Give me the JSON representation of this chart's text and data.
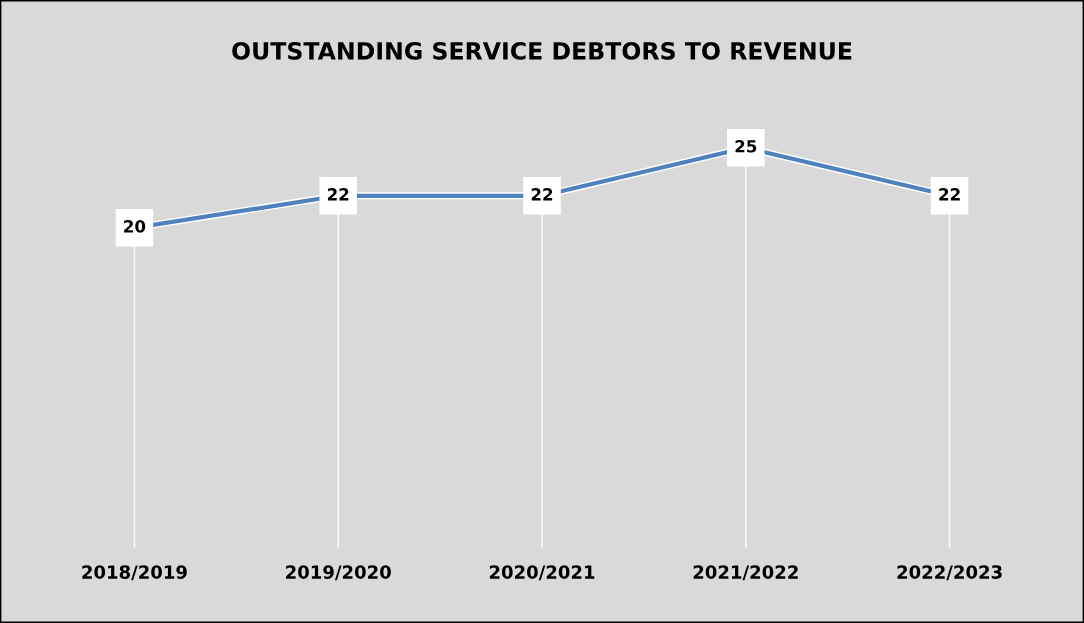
{
  "chart_data": {
    "type": "line",
    "title": "OUTSTANDING SERVICE DEBTORS TO REVENUE",
    "categories": [
      "2018/2019",
      "2019/2020",
      "2020/2021",
      "2021/2022",
      "2022/2023"
    ],
    "series": [
      {
        "color": "#4f81bd",
        "values": [
          20,
          22,
          22,
          25,
          22
        ]
      }
    ],
    "data_labels": true,
    "grid": "x",
    "legend": false,
    "marker": "square",
    "line_style": "solid"
  }
}
